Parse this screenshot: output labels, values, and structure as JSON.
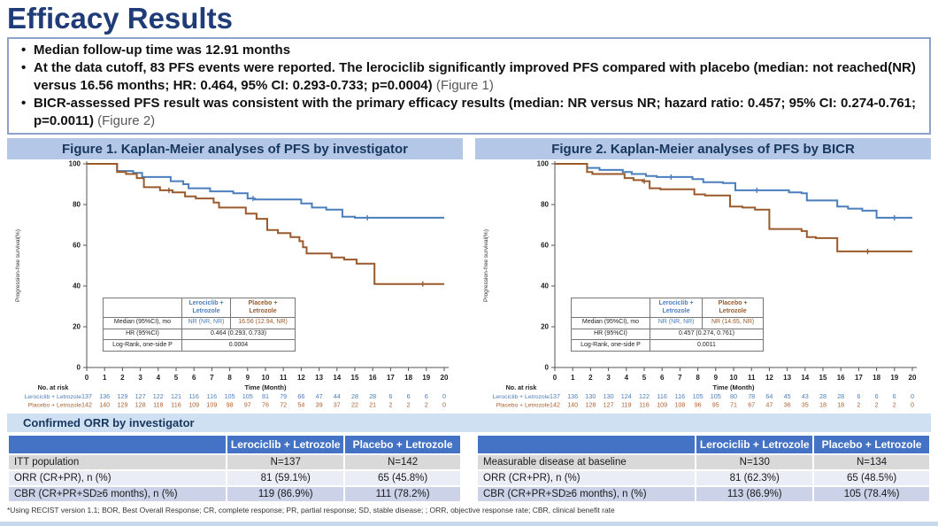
{
  "page": {
    "title": "Efficacy Results"
  },
  "bullets": [
    {
      "text": "Median follow-up time was 12.91 months",
      "ref": ""
    },
    {
      "text": "At the data cutoff, 83 PFS events were reported. The lerociclib significantly improved PFS compared with placebo (median: not reached(NR) versus 16.56 months; HR: 0.464, 95% CI: 0.293-0.733; p=0.0004)",
      "ref": "(Figure 1)"
    },
    {
      "text": "BICR-assessed PFS result was consistent with the primary efficacy results (median: NR versus NR; hazard ratio: 0.457; 95% CI: 0.274-0.761; p=0.0011)",
      "ref": "(Figure 2)"
    }
  ],
  "colors": {
    "title_navy": "#1F3C78",
    "banner_bg": "#B4C7E6",
    "banner_text": "#17375E",
    "table_header_blue": "#4472C4",
    "lerociclib_blue": "#4A7EBC",
    "placebo_brown": "#9A5A2C"
  },
  "chart_data": [
    {
      "type": "line",
      "title": "Figure 1. Kaplan-Meier analyses of PFS by investigator",
      "xlabel": "Time (Month)",
      "ylabel": "Progression-free survival(%)",
      "xlim": [
        0,
        20
      ],
      "ylim": [
        0,
        100
      ],
      "xticks": [
        0,
        1,
        2,
        3,
        4,
        5,
        6,
        7,
        8,
        9,
        10,
        11,
        12,
        13,
        14,
        15,
        16,
        17,
        18,
        19,
        20
      ],
      "yticks": [
        0,
        20,
        40,
        60,
        80,
        100
      ],
      "grid": false,
      "legend": "none",
      "series": [
        {
          "name": "Lerociclib + Letrozole",
          "color": "#4A7EBC",
          "steps": [
            [
              0,
              100
            ],
            [
              1.7,
              100
            ],
            [
              1.7,
              96.5
            ],
            [
              2.6,
              96.5
            ],
            [
              2.6,
              95.5
            ],
            [
              3.1,
              95.5
            ],
            [
              3.1,
              93.5
            ],
            [
              4.7,
              93.5
            ],
            [
              4.7,
              91.5
            ],
            [
              5.4,
              91.5
            ],
            [
              5.4,
              90
            ],
            [
              5.7,
              90
            ],
            [
              5.7,
              88
            ],
            [
              6.9,
              88
            ],
            [
              6.9,
              86.5
            ],
            [
              8.2,
              86.5
            ],
            [
              8.2,
              85.5
            ],
            [
              9,
              85.5
            ],
            [
              9,
              83
            ],
            [
              9.4,
              83
            ],
            [
              9.4,
              82.5
            ],
            [
              12,
              82.5
            ],
            [
              12,
              80.5
            ],
            [
              12.6,
              80.5
            ],
            [
              12.6,
              78.5
            ],
            [
              13.4,
              78.5
            ],
            [
              13.4,
              77.5
            ],
            [
              14.3,
              77.5
            ],
            [
              14.3,
              74
            ],
            [
              15,
              74
            ],
            [
              15,
              73.5
            ],
            [
              20,
              73.5
            ]
          ],
          "censor_marks": [
            9.3,
            15.7
          ]
        },
        {
          "name": "Placebo + Letrozole",
          "color": "#9A5A2C",
          "steps": [
            [
              0,
              100
            ],
            [
              1.7,
              100
            ],
            [
              1.7,
              96
            ],
            [
              2.2,
              96
            ],
            [
              2.2,
              95
            ],
            [
              2.8,
              95
            ],
            [
              2.8,
              93
            ],
            [
              3.2,
              93
            ],
            [
              3.2,
              88.5
            ],
            [
              4.1,
              88.5
            ],
            [
              4.1,
              87
            ],
            [
              4.8,
              87
            ],
            [
              4.8,
              86
            ],
            [
              5.5,
              86
            ],
            [
              5.5,
              84
            ],
            [
              6.1,
              84
            ],
            [
              6.1,
              83
            ],
            [
              7.1,
              83
            ],
            [
              7.1,
              81
            ],
            [
              7.4,
              81
            ],
            [
              7.4,
              78.5
            ],
            [
              8.9,
              78.5
            ],
            [
              8.9,
              75.5
            ],
            [
              9.5,
              75.5
            ],
            [
              9.5,
              73
            ],
            [
              10.1,
              73
            ],
            [
              10.1,
              67.5
            ],
            [
              10.7,
              67.5
            ],
            [
              10.7,
              66
            ],
            [
              11.4,
              66
            ],
            [
              11.4,
              64
            ],
            [
              11.9,
              64
            ],
            [
              11.9,
              62
            ],
            [
              12.1,
              62
            ],
            [
              12.1,
              59
            ],
            [
              12.3,
              59
            ],
            [
              12.3,
              56
            ],
            [
              13.7,
              56
            ],
            [
              13.7,
              54
            ],
            [
              14.4,
              54
            ],
            [
              14.4,
              53
            ],
            [
              15.1,
              53
            ],
            [
              15.1,
              51
            ],
            [
              16.1,
              51
            ],
            [
              16.1,
              41
            ],
            [
              20,
              41
            ]
          ],
          "censor_marks": [
            4.6,
            18.8
          ]
        }
      ],
      "at_risk": {
        "label": "No. at risk",
        "rows": [
          {
            "name": "Lerociclib + Letrozole",
            "color": "#4A7EBC",
            "values": [
              137,
              136,
              129,
              127,
              122,
              121,
              116,
              116,
              105,
              105,
              81,
              79,
              66,
              47,
              44,
              28,
              28,
              6,
              6,
              6,
              0
            ]
          },
          {
            "name": "Placebo + Letrozole",
            "color": "#B06030",
            "values": [
              142,
              140,
              129,
              128,
              118,
              116,
              109,
              109,
              98,
              97,
              76,
              72,
              54,
              39,
              37,
              22,
              21,
              2,
              2,
              2,
              0
            ]
          }
        ]
      },
      "inset": {
        "header": {
          "col1": "Lerociclib +\nLetrozole",
          "col2": "Placebo +\nLetrozole"
        },
        "median": {
          "label": "Median (95%CI), mo",
          "col1": "NR (NR, NR)",
          "col2": "16.56 (12.94, NR)"
        },
        "hr": {
          "label": "HR (95%CI)",
          "value": "0.464 (0.293, 0.733)"
        },
        "logrank": {
          "label": "Log-Rank, one-side P",
          "value": "0.0004"
        }
      }
    },
    {
      "type": "line",
      "title": "Figure 2. Kaplan-Meier analyses of PFS by BICR",
      "xlabel": "Time (Month)",
      "ylabel": "Progression-free survival(%)",
      "xlim": [
        0,
        20
      ],
      "ylim": [
        0,
        100
      ],
      "xticks": [
        0,
        1,
        2,
        3,
        4,
        5,
        6,
        7,
        8,
        9,
        10,
        11,
        12,
        13,
        14,
        15,
        16,
        17,
        18,
        19,
        20
      ],
      "yticks": [
        0,
        20,
        40,
        60,
        80,
        100
      ],
      "grid": false,
      "legend": "none",
      "series": [
        {
          "name": "Lerociclib + Letrozole",
          "color": "#4A7EBC",
          "steps": [
            [
              0,
              100
            ],
            [
              1.8,
              100
            ],
            [
              1.8,
              98
            ],
            [
              2.5,
              98
            ],
            [
              2.5,
              97
            ],
            [
              3.8,
              97
            ],
            [
              3.8,
              96
            ],
            [
              4.3,
              96
            ],
            [
              4.3,
              95
            ],
            [
              5.1,
              95
            ],
            [
              5.1,
              94
            ],
            [
              5.7,
              94
            ],
            [
              5.7,
              93.5
            ],
            [
              7.7,
              93.5
            ],
            [
              7.7,
              92.5
            ],
            [
              8.3,
              92.5
            ],
            [
              8.3,
              91
            ],
            [
              9.4,
              91
            ],
            [
              9.4,
              90.5
            ],
            [
              10.1,
              90.5
            ],
            [
              10.1,
              87
            ],
            [
              13.1,
              87
            ],
            [
              13.1,
              86
            ],
            [
              13.8,
              86
            ],
            [
              13.8,
              85.5
            ],
            [
              14.1,
              85.5
            ],
            [
              14.1,
              82
            ],
            [
              15.8,
              82
            ],
            [
              15.8,
              79
            ],
            [
              16.4,
              79
            ],
            [
              16.4,
              78
            ],
            [
              17.2,
              78
            ],
            [
              17.2,
              77
            ],
            [
              18,
              77
            ],
            [
              18,
              73.5
            ],
            [
              20,
              73.5
            ]
          ],
          "censor_marks": [
            6.5,
            11.3,
            19.0
          ]
        },
        {
          "name": "Placebo + Letrozole",
          "color": "#9A5A2C",
          "steps": [
            [
              0,
              100
            ],
            [
              1.8,
              100
            ],
            [
              1.8,
              96
            ],
            [
              2.1,
              96
            ],
            [
              2.1,
              95
            ],
            [
              3.9,
              95
            ],
            [
              3.9,
              93
            ],
            [
              4.4,
              93
            ],
            [
              4.4,
              92
            ],
            [
              4.9,
              92
            ],
            [
              4.9,
              91.5
            ],
            [
              5.3,
              91.5
            ],
            [
              5.3,
              88
            ],
            [
              5.9,
              88
            ],
            [
              5.9,
              87.5
            ],
            [
              7.8,
              87.5
            ],
            [
              7.8,
              85
            ],
            [
              8.4,
              85
            ],
            [
              8.4,
              84.5
            ],
            [
              9.8,
              84.5
            ],
            [
              9.8,
              79
            ],
            [
              10.5,
              79
            ],
            [
              10.5,
              78.5
            ],
            [
              11.2,
              78.5
            ],
            [
              11.2,
              77.5
            ],
            [
              12,
              77.5
            ],
            [
              12,
              68
            ],
            [
              13.8,
              68
            ],
            [
              13.8,
              67
            ],
            [
              14.1,
              67
            ],
            [
              14.1,
              64
            ],
            [
              14.6,
              64
            ],
            [
              14.6,
              63.5
            ],
            [
              15.8,
              63.5
            ],
            [
              15.8,
              57
            ],
            [
              20,
              57
            ]
          ],
          "censor_marks": [
            5.0,
            17.5
          ]
        }
      ],
      "at_risk": {
        "label": "No. at risk",
        "rows": [
          {
            "name": "Lerociclib + Letrozole",
            "color": "#4A7EBC",
            "values": [
              137,
              136,
              130,
              130,
              124,
              122,
              116,
              116,
              105,
              105,
              80,
              78,
              64,
              45,
              43,
              28,
              28,
              6,
              6,
              6,
              0
            ]
          },
          {
            "name": "Placebo + Letrozole",
            "color": "#B06030",
            "values": [
              142,
              140,
              128,
              127,
              119,
              116,
              109,
              108,
              96,
              95,
              71,
              67,
              47,
              36,
              35,
              18,
              18,
              2,
              2,
              2,
              0
            ]
          }
        ]
      },
      "inset": {
        "header": {
          "col1": "Lerociclib +\nLetrozole",
          "col2": "Placebo +\nLetrozole"
        },
        "median": {
          "label": "Median (95%CI), mo",
          "col1": "NR (NR, NR)",
          "col2": "NR (14.65, NR)"
        },
        "hr": {
          "label": "HR (95%CI)",
          "value": "0.457 (0.274, 0.761)"
        },
        "logrank": {
          "label": "Log-Rank, one-side P",
          "value": "0.0011"
        }
      }
    }
  ],
  "orr": {
    "section_title": "Confirmed ORR by investigator",
    "tables": [
      {
        "columns": [
          "",
          "Lerociclib + Letrozole",
          "Placebo + Letrozole"
        ],
        "rows": [
          [
            "ITT population",
            "N=137",
            "N=142"
          ],
          [
            "ORR (CR+PR), n (%)",
            "81 (59.1%)",
            "65 (45.8%)"
          ],
          [
            "CBR (CR+PR+SD≥6 months), n (%)",
            "119 (86.9%)",
            "111 (78.2%)"
          ]
        ]
      },
      {
        "columns": [
          "",
          "Lerociclib + Letrozole",
          "Placebo + Letrozole"
        ],
        "rows": [
          [
            "Measurable disease at baseline",
            "N=130",
            "N=134"
          ],
          [
            "ORR (CR+PR), n (%)",
            "81 (62.3%)",
            "65 (48.5%)"
          ],
          [
            "CBR (CR+PR+SD≥6 months), n (%)",
            "113 (86.9%)",
            "105 (78.4%)"
          ]
        ]
      }
    ],
    "footnote": "*Using RECIST version 1.1; BOR, Best Overall Response; CR, complete response; PR, partial response; SD, stable disease; ; ORR, objective response rate; CBR, clinical benefit rate"
  }
}
